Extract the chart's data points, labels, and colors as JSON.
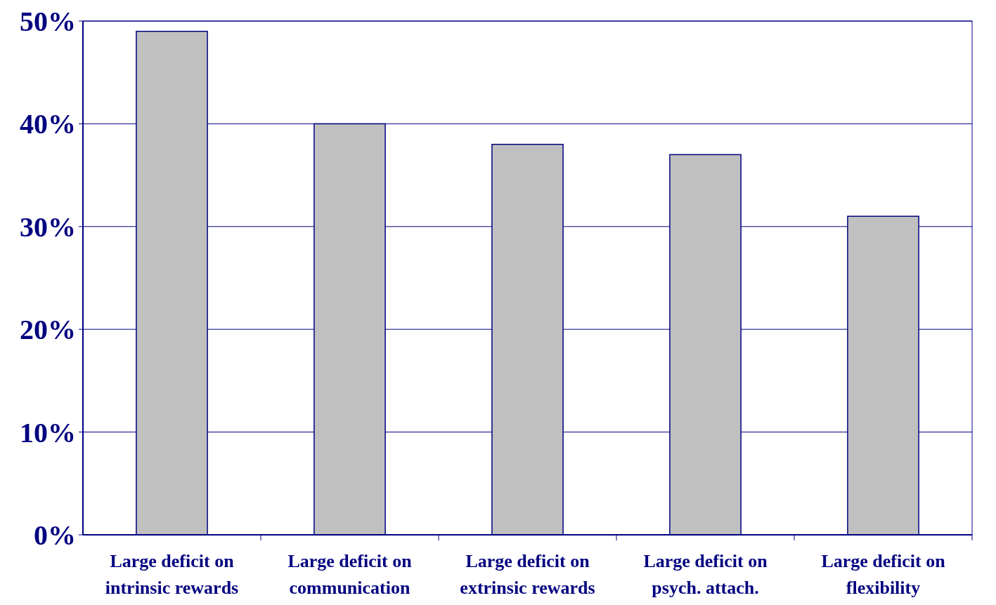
{
  "chart_data": {
    "type": "bar",
    "categories": [
      "Large deficit on intrinsic rewards",
      "Large deficit on communication",
      "Large deficit on extrinsic rewards",
      "Large deficit on psych. attach.",
      "Large deficit on flexibility"
    ],
    "values": [
      49,
      40,
      38,
      37,
      31
    ],
    "color": "#c0c0c0",
    "ylim": [
      0,
      50
    ],
    "yticks": [
      {
        "value": 0,
        "label": "0%"
      },
      {
        "value": 10,
        "label": "10%"
      },
      {
        "value": 20,
        "label": "20%"
      },
      {
        "value": 30,
        "label": "30%"
      },
      {
        "value": 40,
        "label": "40%"
      },
      {
        "value": 50,
        "label": "50%"
      }
    ],
    "grid": "y"
  }
}
